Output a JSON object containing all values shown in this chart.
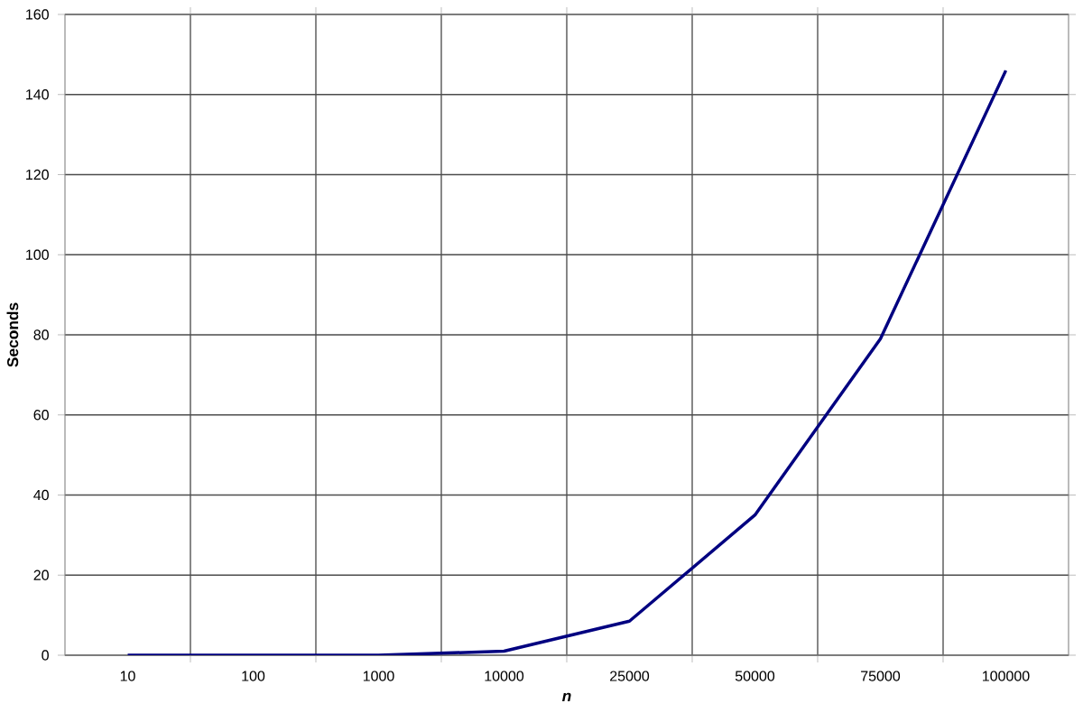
{
  "chart_data": {
    "type": "line",
    "xlabel": "n",
    "ylabel": "Seconds",
    "categories": [
      "10",
      "100",
      "1000",
      "10000",
      "25000",
      "50000",
      "75000",
      "100000"
    ],
    "series": [
      {
        "color": "#000080",
        "values": [
          0,
          0,
          0,
          1,
          8.5,
          35,
          79,
          146
        ]
      }
    ],
    "ylim": [
      0,
      160
    ],
    "yticks": [
      0,
      20,
      40,
      60,
      80,
      100,
      120,
      140,
      160
    ],
    "grid": true,
    "marker": "none",
    "line_style": "solid"
  }
}
